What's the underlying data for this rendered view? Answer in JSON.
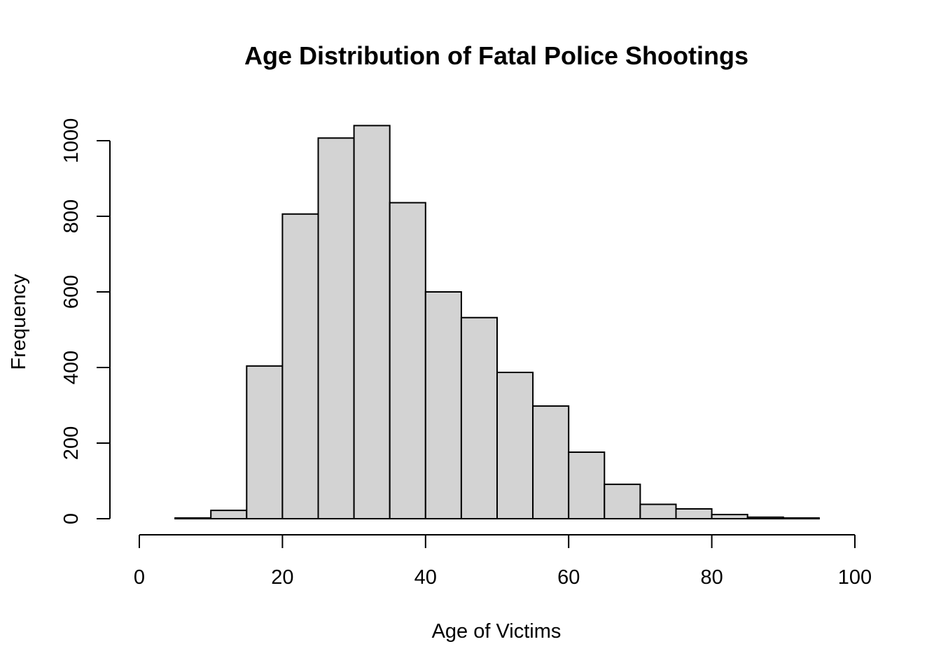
{
  "chart_data": {
    "type": "bar",
    "title": "Age Distribution of Fatal Police Shootings",
    "xlabel": "Age of Victims",
    "ylabel": "Frequency",
    "xlim": [
      0,
      100
    ],
    "ylim": [
      0,
      1000
    ],
    "x_ticks": [
      0,
      20,
      40,
      60,
      80,
      100
    ],
    "y_ticks": [
      0,
      200,
      400,
      600,
      800,
      1000
    ],
    "bin_width": 5,
    "bins": [
      {
        "start": 5,
        "end": 10,
        "count": 2
      },
      {
        "start": 10,
        "end": 15,
        "count": 22
      },
      {
        "start": 15,
        "end": 20,
        "count": 404
      },
      {
        "start": 20,
        "end": 25,
        "count": 806
      },
      {
        "start": 25,
        "end": 30,
        "count": 1007
      },
      {
        "start": 30,
        "end": 35,
        "count": 1040
      },
      {
        "start": 35,
        "end": 40,
        "count": 836
      },
      {
        "start": 40,
        "end": 45,
        "count": 600
      },
      {
        "start": 45,
        "end": 50,
        "count": 532
      },
      {
        "start": 50,
        "end": 55,
        "count": 387
      },
      {
        "start": 55,
        "end": 60,
        "count": 298
      },
      {
        "start": 60,
        "end": 65,
        "count": 176
      },
      {
        "start": 65,
        "end": 70,
        "count": 91
      },
      {
        "start": 70,
        "end": 75,
        "count": 38
      },
      {
        "start": 75,
        "end": 80,
        "count": 26
      },
      {
        "start": 80,
        "end": 85,
        "count": 11
      },
      {
        "start": 85,
        "end": 90,
        "count": 4
      },
      {
        "start": 90,
        "end": 95,
        "count": 2
      }
    ],
    "grid": false,
    "colors": {
      "bar_fill": "#d3d3d3",
      "bar_stroke": "#000000"
    }
  }
}
